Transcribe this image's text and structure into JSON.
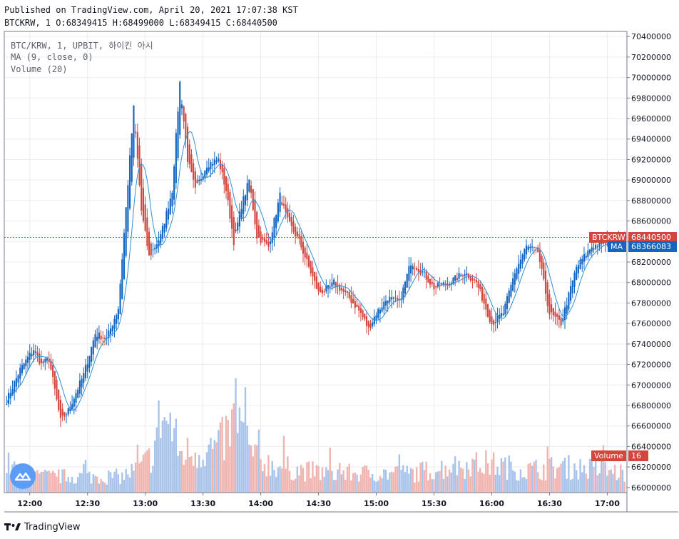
{
  "header": {
    "published": "Published on TradingView.com, April 20, 2021 17:07:38 KST",
    "ohlc": "BTCKRW, 1 O:68349415 H:68499000 L:68349415 C:68440500"
  },
  "legend": {
    "symbol": "BTC/KRW, 1, UPBIT, 하이킨 아시",
    "ma": "MA (9, close, 0)",
    "volume": "Volume (20)"
  },
  "labels": {
    "btc_tag": "BTCKRW",
    "btc_price": "68440500",
    "ma_tag": "MA",
    "ma_price": "68366083",
    "vol_tag": "Volume",
    "vol_value": "16"
  },
  "footer": {
    "brand": "TradingView"
  },
  "colors": {
    "up": "#1565c0",
    "down": "#d2463e",
    "ma": "#2f8fd8",
    "vol_up": "#a9c4ea",
    "vol_down": "#f0b5b0",
    "grid": "#e9ecf0"
  },
  "chart_data": {
    "type": "candlestick",
    "title": "BTC/KRW, 1, UPBIT, 하이킨 아시",
    "ylim": [
      65950000,
      70450000
    ],
    "y_ticks": [
      66000000,
      66200000,
      66400000,
      66600000,
      66800000,
      67000000,
      67200000,
      67400000,
      67600000,
      67800000,
      68000000,
      68200000,
      68400000,
      68600000,
      68800000,
      69000000,
      69200000,
      69400000,
      69600000,
      69800000,
      70000000,
      70200000,
      70400000
    ],
    "y_tick_labels": [
      "66000000",
      "66200000",
      "66400000",
      "66600000",
      "66800000",
      "67000000",
      "67200000",
      "67400000",
      "67600000",
      "67800000",
      "68000000",
      "68200000",
      "68400000",
      "68600000",
      "68800000",
      "69000000",
      "69200000",
      "69400000",
      "69600000",
      "69800000",
      "70000000",
      "70200000",
      "70400000"
    ],
    "x_ticks": [
      {
        "t": 12,
        "label": "12:00"
      },
      {
        "t": 42,
        "label": "12:30"
      },
      {
        "t": 72,
        "label": "13:00"
      },
      {
        "t": 102,
        "label": "13:30"
      },
      {
        "t": 132,
        "label": "14:00"
      },
      {
        "t": 162,
        "label": "14:30"
      },
      {
        "t": 192,
        "label": "15:00"
      },
      {
        "t": 222,
        "label": "15:30"
      },
      {
        "t": 252,
        "label": "16:00"
      },
      {
        "t": 282,
        "label": "16:30"
      },
      {
        "t": 312,
        "label": "17:00"
      }
    ],
    "n_bars": 322,
    "last_price": 68440500,
    "ma_value": 68366083,
    "volume_last": 16,
    "price_path": [
      [
        0,
        66850000
      ],
      [
        7,
        67150000
      ],
      [
        14,
        67350000
      ],
      [
        18,
        67200000
      ],
      [
        22,
        67250000
      ],
      [
        28,
        66650000
      ],
      [
        32,
        66750000
      ],
      [
        40,
        67100000
      ],
      [
        46,
        67500000
      ],
      [
        52,
        67450000
      ],
      [
        58,
        67750000
      ],
      [
        66,
        69700000
      ],
      [
        70,
        68700000
      ],
      [
        74,
        68250000
      ],
      [
        80,
        68450000
      ],
      [
        86,
        68900000
      ],
      [
        90,
        69950000
      ],
      [
        94,
        69200000
      ],
      [
        98,
        68900000
      ],
      [
        104,
        69150000
      ],
      [
        110,
        69200000
      ],
      [
        114,
        68900000
      ],
      [
        118,
        68400000
      ],
      [
        122,
        68750000
      ],
      [
        126,
        69000000
      ],
      [
        130,
        68450000
      ],
      [
        136,
        68350000
      ],
      [
        142,
        68850000
      ],
      [
        146,
        68600000
      ],
      [
        152,
        68400000
      ],
      [
        156,
        68200000
      ],
      [
        162,
        67900000
      ],
      [
        168,
        67950000
      ],
      [
        170,
        68000000
      ],
      [
        178,
        67850000
      ],
      [
        184,
        67700000
      ],
      [
        188,
        67550000
      ],
      [
        192,
        67700000
      ],
      [
        198,
        67850000
      ],
      [
        204,
        67800000
      ],
      [
        210,
        68200000
      ],
      [
        216,
        68100000
      ],
      [
        222,
        67950000
      ],
      [
        230,
        68000000
      ],
      [
        238,
        68100000
      ],
      [
        244,
        68000000
      ],
      [
        252,
        67600000
      ],
      [
        258,
        67700000
      ],
      [
        264,
        68100000
      ],
      [
        270,
        68350000
      ],
      [
        276,
        68300000
      ],
      [
        282,
        67700000
      ],
      [
        288,
        67600000
      ],
      [
        296,
        68150000
      ],
      [
        304,
        68350000
      ],
      [
        312,
        68400000
      ],
      [
        321,
        68440500
      ]
    ],
    "volume_profile": [
      [
        0,
        45
      ],
      [
        10,
        25
      ],
      [
        20,
        25
      ],
      [
        40,
        25
      ],
      [
        60,
        25
      ],
      [
        70,
        40
      ],
      [
        76,
        60
      ],
      [
        80,
        120
      ],
      [
        86,
        100
      ],
      [
        90,
        60
      ],
      [
        110,
        70
      ],
      [
        120,
        115
      ],
      [
        126,
        70
      ],
      [
        130,
        50
      ],
      [
        150,
        35
      ],
      [
        170,
        30
      ],
      [
        190,
        30
      ],
      [
        210,
        30
      ],
      [
        230,
        40
      ],
      [
        250,
        45
      ],
      [
        270,
        35
      ],
      [
        290,
        40
      ],
      [
        310,
        35
      ],
      [
        321,
        30
      ]
    ]
  }
}
